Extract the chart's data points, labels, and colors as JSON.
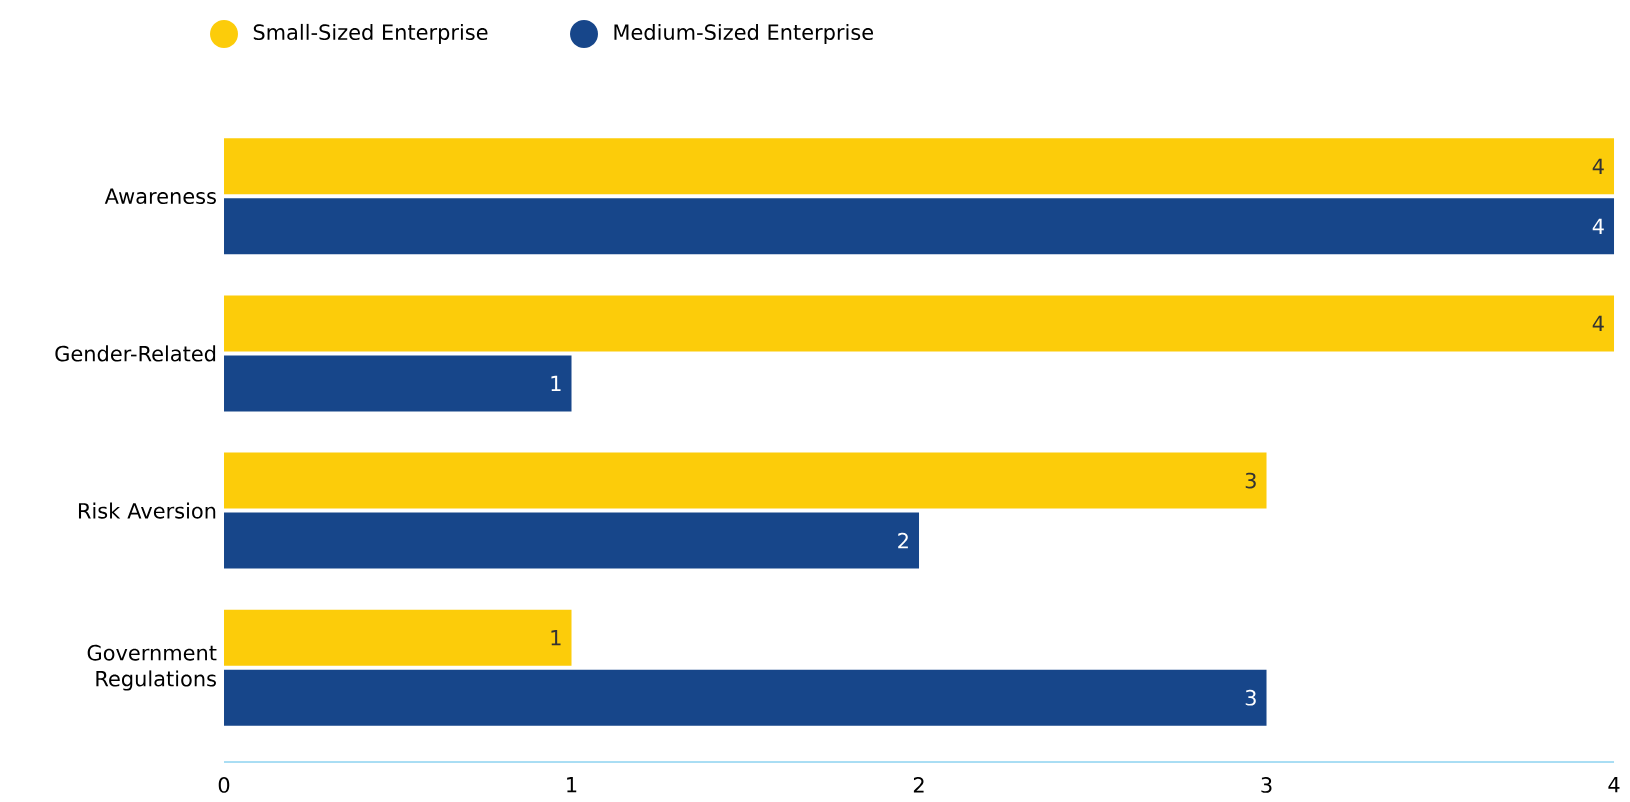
{
  "chart_data": {
    "type": "bar",
    "orientation": "horizontal",
    "categories": [
      "Awareness",
      "Gender-Related",
      "Risk Aversion",
      "Government Regulations"
    ],
    "series": [
      {
        "name": "Small-Sized Enterprise",
        "color": "#fccc0a",
        "values": [
          4,
          4,
          3,
          1
        ]
      },
      {
        "name": "Medium-Sized Enterprise",
        "color": "#17468a",
        "values": [
          4,
          1,
          2,
          3
        ]
      }
    ],
    "xlim": [
      0,
      4
    ],
    "xticks": [
      0,
      1,
      2,
      3,
      4
    ],
    "data_labels": true,
    "legend": "top left",
    "grid": false
  }
}
